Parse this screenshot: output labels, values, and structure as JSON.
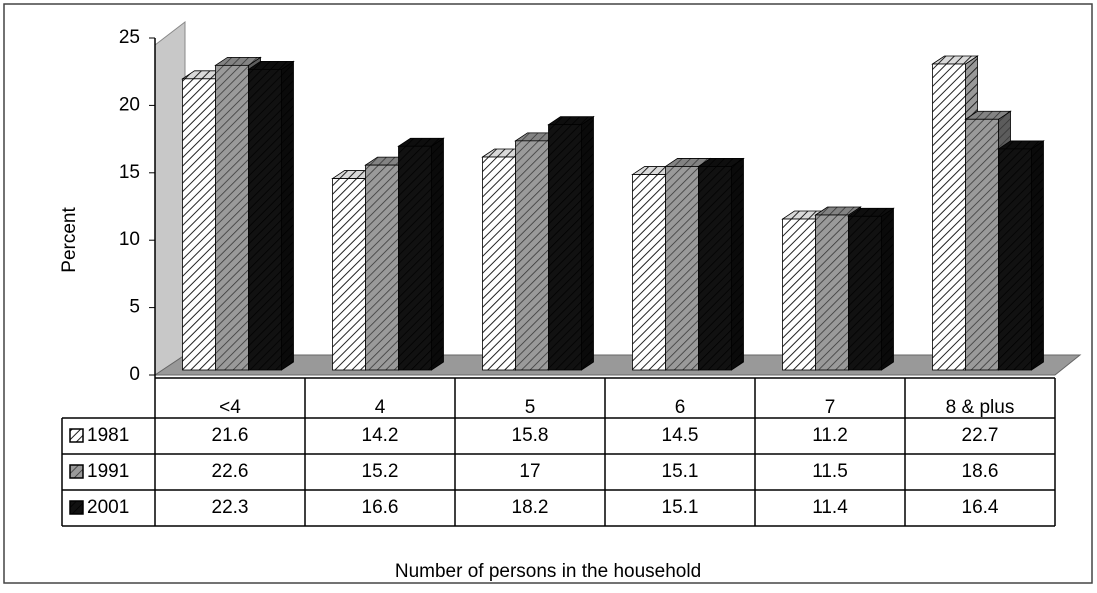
{
  "chart_data": {
    "type": "bar",
    "y_label": "Percent",
    "x_label": "Number of persons in the household",
    "categories": [
      "<4",
      "4",
      "5",
      "6",
      "7",
      "8 & plus"
    ],
    "series": [
      {
        "name": "1981",
        "color": "#ffffff",
        "values": [
          21.6,
          14.2,
          15.8,
          14.5,
          11.2,
          22.7
        ]
      },
      {
        "name": "1991",
        "color": "#9a9a9a",
        "values": [
          22.6,
          15.2,
          17,
          15.1,
          11.5,
          18.6
        ]
      },
      {
        "name": "2001",
        "color": "#111111",
        "values": [
          22.3,
          16.6,
          18.2,
          15.1,
          11.4,
          16.4
        ]
      }
    ],
    "ylim": [
      0,
      25
    ],
    "yticks": [
      0,
      5,
      10,
      15,
      20,
      25
    ]
  }
}
